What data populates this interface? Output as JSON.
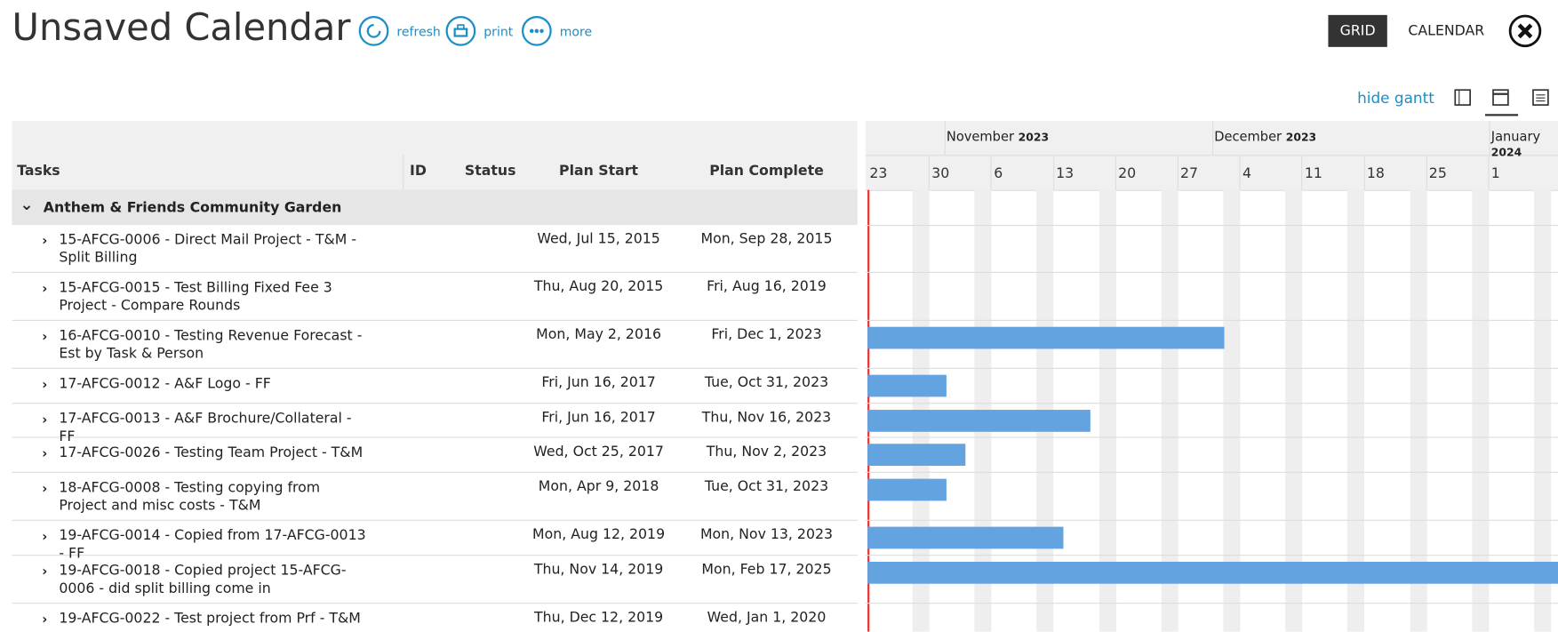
{
  "header": {
    "title": "Unsaved Calendar",
    "actions": [
      "refresh",
      "print",
      "more"
    ],
    "views": [
      "GRID",
      "CALENDAR"
    ],
    "hide_gantt": "hide gantt"
  },
  "table": {
    "columns": [
      "Tasks",
      "ID",
      "Status",
      "Plan Start",
      "Plan Complete"
    ],
    "group": "Anthem & Friends Community Garden",
    "rows": [
      [
        "15-AFCG-0006 - Direct Mail Project - T&M - Split Billing",
        "Wed, Jul 15, 2015",
        "Mon, Sep 28, 2015"
      ],
      [
        "15-AFCG-0015 - Test Billing Fixed Fee 3 Project - Compare Rounds",
        "Thu, Aug 20, 2015",
        "Fri, Aug 16, 2019"
      ],
      [
        "16-AFCG-0010 - Testing Revenue Forecast - Est by Task & Person",
        "Mon, May 2, 2016",
        "Fri, Dec 1, 2023"
      ],
      [
        "17-AFCG-0012 - A&F Logo - FF",
        "Fri, Jun 16, 2017",
        "Tue, Oct 31, 2023"
      ],
      [
        "17-AFCG-0013 - A&F Brochure/Collateral - FF",
        "Fri, Jun 16, 2017",
        "Thu, Nov 16, 2023"
      ],
      [
        "17-AFCG-0026 - Testing Team Project - T&M",
        "Wed, Oct 25, 2017",
        "Thu, Nov 2, 2023"
      ],
      [
        "18-AFCG-0008 - Testing copying from Project and misc costs - T&M",
        "Mon, Apr 9, 2018",
        "Tue, Oct 31, 2023"
      ],
      [
        "19-AFCG-0014 - Copied from 17-AFCG-0013 - FF",
        "Mon, Aug 12, 2019",
        "Mon, Nov 13, 2023"
      ],
      [
        "19-AFCG-0018 - Copied project 15-AFCG-0006 - did split billing come in",
        "Thu, Nov 14, 2019",
        "Mon, Feb 17, 2025"
      ],
      [
        "19-AFCG-0022 - Test project from Prf - T&M",
        "Thu, Dec 12, 2019",
        "Wed, Jan 1, 2020"
      ]
    ]
  },
  "gantt": {
    "months": [
      [
        "November",
        "2023"
      ],
      [
        "December",
        "2023"
      ],
      [
        "January",
        "2024"
      ]
    ],
    "days": [
      "23",
      "30",
      "6",
      "13",
      "20",
      "27",
      "4",
      "11",
      "18",
      "25",
      "1"
    ]
  }
}
